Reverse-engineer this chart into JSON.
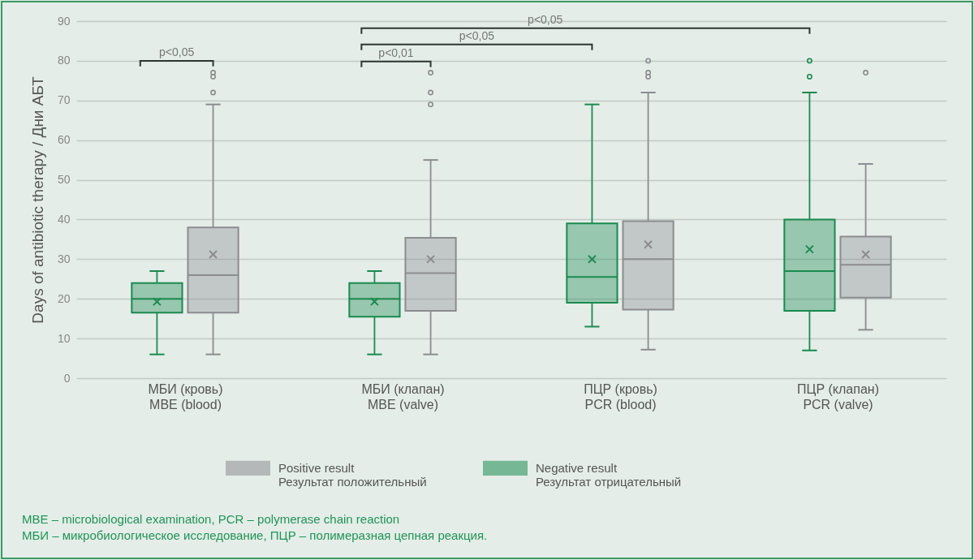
{
  "chart_data": {
    "type": "box",
    "ylabel": "Days of antibiotic therapy / Дни АБТ",
    "categories": [
      "МБИ (кровь)\nMBE (blood)",
      "МБИ (клапан)\nMBE (valve)",
      "ПЦР (кровь)\nPCR (blood)",
      "ПЦР (клапан)\nPCR (valve)"
    ],
    "series": [
      {
        "name": "Negative result\nРезультат отрицательный",
        "color": "#1b8a50",
        "boxes": [
          {
            "low": 6,
            "q1": 16.5,
            "median": 20,
            "q3": 24,
            "high": 27,
            "mean": 19.3
          },
          {
            "low": 6,
            "q1": 15.5,
            "median": 20,
            "q3": 24,
            "high": 27,
            "mean": 19.3
          },
          {
            "low": 13,
            "q1": 19,
            "median": 25.5,
            "q3": 39,
            "high": 69,
            "mean": 30
          },
          {
            "low": 7,
            "q1": 17,
            "median": 27,
            "q3": 40,
            "high": 72,
            "mean": 32.5,
            "outliers": [
              80,
              76
            ]
          }
        ]
      },
      {
        "name": "Positive result\nРезультат положительный",
        "color": "#8c8c90",
        "boxes": [
          {
            "low": 6,
            "q1": 16.5,
            "median": 26,
            "q3": 38,
            "high": 69,
            "mean": 31.2,
            "outliers": [
              77,
              76,
              72
            ]
          },
          {
            "low": 6,
            "q1": 17,
            "median": 26.5,
            "q3": 35.4,
            "high": 55,
            "mean": 30,
            "outliers": [
              77,
              72,
              69
            ]
          },
          {
            "low": 7.2,
            "q1": 17.3,
            "median": 30,
            "q3": 39.6,
            "high": 72,
            "mean": 33.7,
            "outliers": [
              80,
              77,
              76
            ]
          },
          {
            "low": 12.2,
            "q1": 20.3,
            "median": 28.6,
            "q3": 35.7,
            "high": 54,
            "mean": 31.2,
            "outliers": [
              77
            ]
          }
        ]
      }
    ],
    "ylim": [
      0,
      90
    ],
    "yticks": [
      0,
      10,
      20,
      30,
      40,
      50,
      60,
      70,
      80,
      90
    ],
    "grid": "y",
    "legend": "bottom",
    "annotations": [
      "p<0,05",
      "p<0,01",
      "p<0,05",
      "p<0,05",
      "MBE – microbiological examination, PCR – polymerase chain reaction",
      "МБИ – микробиологическое исследование, ПЦР – полимеразная цепная реакция."
    ]
  }
}
